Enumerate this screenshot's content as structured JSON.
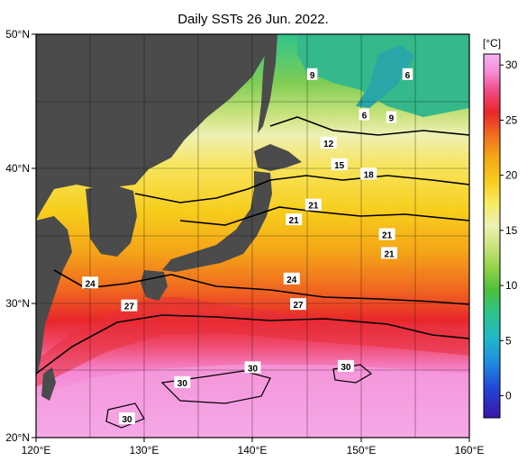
{
  "title": "Daily SSTs 26 Jun. 2022.",
  "unit": "[°C]",
  "lon_ticks": [
    "120°E",
    "130°E",
    "140°E",
    "150°E",
    "160°E"
  ],
  "lat_ticks": [
    "50°N",
    "40°N",
    "30°N",
    "20°N"
  ],
  "colorbar": {
    "ticks": [
      "30",
      "25",
      "20",
      "15",
      "10",
      "5",
      "0"
    ],
    "values": [
      30,
      25,
      20,
      15,
      10,
      5,
      0
    ],
    "range": [
      -2,
      31
    ]
  },
  "isotherm_labels": [
    {
      "text": "9",
      "lon": 145.5,
      "lat": 47.0
    },
    {
      "text": "6",
      "lon": 154.3,
      "lat": 47.0
    },
    {
      "text": "6",
      "lon": 150.3,
      "lat": 44.0
    },
    {
      "text": "9",
      "lon": 152.8,
      "lat": 43.8
    },
    {
      "text": "12",
      "lon": 147.0,
      "lat": 41.9
    },
    {
      "text": "15",
      "lon": 148.0,
      "lat": 40.3
    },
    {
      "text": "18",
      "lon": 150.7,
      "lat": 39.6
    },
    {
      "text": "21",
      "lon": 145.6,
      "lat": 37.3
    },
    {
      "text": "21",
      "lon": 143.8,
      "lat": 36.2
    },
    {
      "text": "21",
      "lon": 152.4,
      "lat": 35.1
    },
    {
      "text": "21",
      "lon": 152.6,
      "lat": 33.7
    },
    {
      "text": "24",
      "lon": 125.0,
      "lat": 31.5
    },
    {
      "text": "24",
      "lon": 143.6,
      "lat": 31.8
    },
    {
      "text": "27",
      "lon": 128.6,
      "lat": 29.8
    },
    {
      "text": "27",
      "lon": 144.2,
      "lat": 29.9
    },
    {
      "text": "30",
      "lon": 140.0,
      "lat": 25.2
    },
    {
      "text": "30",
      "lon": 148.6,
      "lat": 25.3
    },
    {
      "text": "30",
      "lon": 133.5,
      "lat": 24.1
    },
    {
      "text": "30",
      "lon": 128.4,
      "lat": 21.4
    }
  ],
  "colors": {
    "land": "#4b4b4b",
    "frame": "#000000",
    "grid": "#000000",
    "scale": [
      "#3a16a8",
      "#2245d8",
      "#1e8be0",
      "#22b8c8",
      "#2ec48a",
      "#4dbe3c",
      "#8fd24a",
      "#c9e37c",
      "#eef0b4",
      "#f7eb62",
      "#f7cd1c",
      "#f5a418",
      "#f06a20",
      "#e8262a",
      "#f24c86",
      "#f58ad6",
      "#f6b4f2"
    ]
  }
}
